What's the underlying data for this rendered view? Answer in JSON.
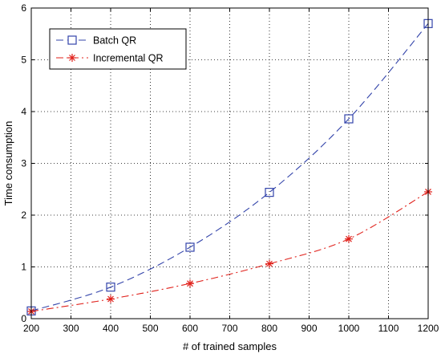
{
  "chart_data": {
    "type": "line",
    "title": "",
    "xlabel": "# of trained samples",
    "ylabel": "Time consumption",
    "xlim": [
      200,
      1200
    ],
    "ylim": [
      0,
      6
    ],
    "x_ticks": [
      200,
      300,
      400,
      500,
      600,
      700,
      800,
      900,
      1000,
      1100,
      1200
    ],
    "y_ticks": [
      0,
      1,
      2,
      3,
      4,
      5,
      6
    ],
    "grid": true,
    "legend_position": "top-left",
    "series": [
      {
        "name": "Batch QR",
        "color": "#3344aa",
        "line_style": "dashed",
        "marker": "square",
        "x": [
          200,
          400,
          600,
          800,
          1000,
          1200
        ],
        "y": [
          0.15,
          0.61,
          1.38,
          2.44,
          3.86,
          5.7
        ]
      },
      {
        "name": "Incremental QR",
        "color": "#e0201a",
        "line_style": "dash-dot",
        "marker": "asterisk",
        "x": [
          200,
          400,
          600,
          800,
          1000,
          1200
        ],
        "y": [
          0.14,
          0.38,
          0.68,
          1.06,
          1.54,
          2.45
        ]
      }
    ]
  }
}
